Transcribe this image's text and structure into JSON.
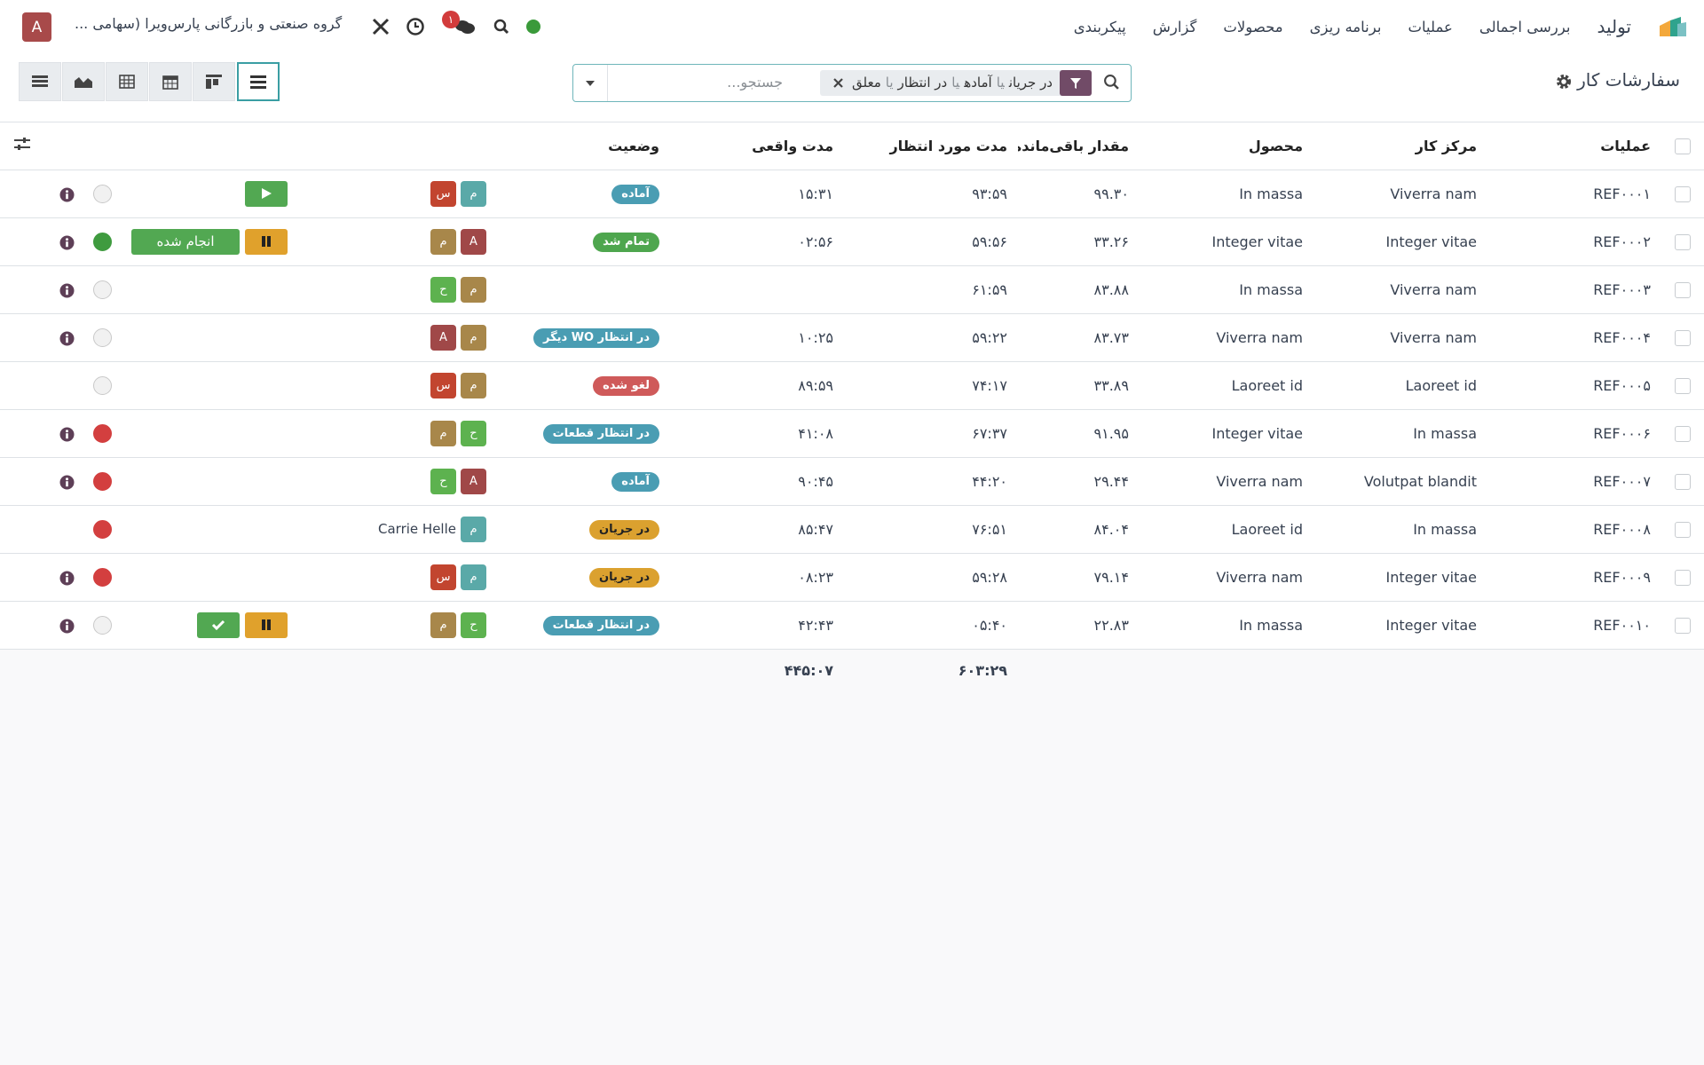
{
  "navbar": {
    "app_name": "تولید",
    "menu": [
      "بررسی اجمالی",
      "عملیات",
      "برنامه ریزی",
      "محصولات",
      "گزارش",
      "پیکربندی"
    ],
    "company": "گروه صنعتی و بازرگانی پارس‌ویرا (سهامی ...",
    "avatar": "A",
    "chat_count": "۱"
  },
  "control_panel": {
    "title": "سفارشات کار",
    "facet": [
      "در جریان",
      "یا",
      "آماده",
      "یا",
      "در انتظار",
      "یا",
      "معلق"
    ],
    "placeholder": "جستجو..."
  },
  "table": {
    "headers": [
      "عملیات",
      "مرکز کار",
      "محصول",
      "مقدار باقی‌مانده",
      "مدت مورد انتظار",
      "مدت واقعی",
      "وضعیت"
    ],
    "rows": [
      {
        "ref": "REF۰۰۰۱",
        "work_center": "Viverra nam",
        "product": "In massa",
        "quantity": "۹۹.۳۰",
        "expected": "۹۳:۵۹",
        "real": "۱۵:۳۱",
        "status": "آماده",
        "avatars": [
          "م",
          "س"
        ]
      },
      {
        "ref": "REF۰۰۰۲",
        "work_center": "Integer vitae",
        "product": "Integer vitae",
        "quantity": "۳۳.۲۶",
        "expected": "۵۹:۵۶",
        "real": "۰۲:۵۶",
        "status": "تمام شد",
        "avatars": [
          "A",
          "م"
        ],
        "button": "انجام شده"
      },
      {
        "ref": "REF۰۰۰۳",
        "work_center": "Viverra nam",
        "product": "In massa",
        "quantity": "۸۳.۸۸",
        "expected": "۶۱:۵۹",
        "avatars": [
          "م",
          "ح"
        ]
      },
      {
        "ref": "REF۰۰۰۴",
        "work_center": "Viverra nam",
        "product": "Viverra nam",
        "quantity": "۸۳.۷۳",
        "expected": "۵۹:۲۲",
        "real": "۱۰:۲۵",
        "status": "در انتظار WO دیگر",
        "avatars": [
          "م",
          "A"
        ]
      },
      {
        "ref": "REF۰۰۰۵",
        "work_center": "Laoreet id",
        "product": "Laoreet id",
        "quantity": "۳۳.۸۹",
        "expected": "۷۴:۱۷",
        "real": "۸۹:۵۹",
        "status": "لغو شده",
        "avatars": [
          "م",
          "س"
        ]
      },
      {
        "ref": "REF۰۰۰۶",
        "work_center": "In massa",
        "product": "Integer vitae",
        "quantity": "۹۱.۹۵",
        "expected": "۶۷:۳۷",
        "real": "۴۱:۰۸",
        "status": "در انتظار قطعات",
        "avatars": [
          "ح",
          "م"
        ]
      },
      {
        "ref": "REF۰۰۰۷",
        "work_center": "Volutpat blandit",
        "product": "Viverra nam",
        "quantity": "۲۹.۴۴",
        "expected": "۴۴:۲۰",
        "real": "۹۰:۴۵",
        "status": "آماده",
        "avatars": [
          "A",
          "ح"
        ]
      },
      {
        "ref": "REF۰۰۰۸",
        "work_center": "In massa",
        "product": "Laoreet id",
        "quantity": "۸۴.۰۴",
        "expected": "۷۶:۵۱",
        "real": "۸۵:۴۷",
        "status": "در جریان",
        "avatars": [
          "م"
        ],
        "user": "Carrie Helle"
      },
      {
        "ref": "REF۰۰۰۹",
        "work_center": "Integer vitae",
        "product": "Viverra nam",
        "quantity": "۷۹.۱۴",
        "expected": "۵۹:۲۸",
        "real": "۰۸:۲۳",
        "status": "در جریان",
        "avatars": [
          "م",
          "س"
        ]
      },
      {
        "ref": "REF۰۰۱۰",
        "work_center": "Integer vitae",
        "product": "In massa",
        "quantity": "۲۲.۸۳",
        "expected": "۰۵:۴۰",
        "real": "۴۲:۴۳",
        "status": "در انتظار قطعات",
        "avatars": [
          "ح",
          "م"
        ]
      }
    ],
    "totals": {
      "expected": "۶۰۳:۲۹",
      "real": "۴۴۵:۰۷"
    }
  }
}
